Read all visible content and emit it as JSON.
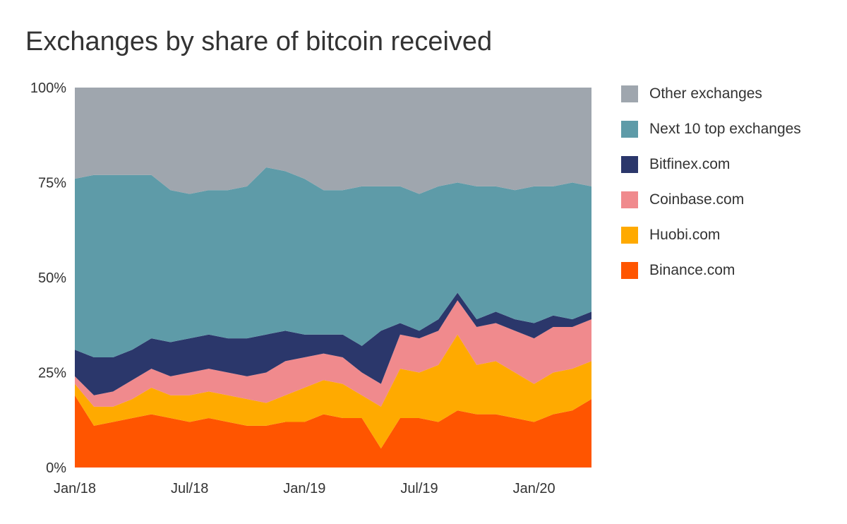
{
  "title": "Exchanges by share of bitcoin received",
  "chart_data": {
    "type": "area",
    "stacked": true,
    "title": "Exchanges by share of bitcoin received",
    "xlabel": "",
    "ylabel": "",
    "x_tick_labels": [
      "Jan/18",
      "Jul/18",
      "Jan/19",
      "Jul/19",
      "Jan/20"
    ],
    "y_tick_labels": [
      "0%",
      "25%",
      "50%",
      "75%",
      "100%"
    ],
    "ylim": [
      0,
      100
    ],
    "x_start": "2018-01",
    "x_end": "2020-04",
    "legend_position": "right",
    "x": [
      "2018-01",
      "2018-02",
      "2018-03",
      "2018-04",
      "2018-05",
      "2018-06",
      "2018-07",
      "2018-08",
      "2018-09",
      "2018-10",
      "2018-11",
      "2018-12",
      "2019-01",
      "2019-02",
      "2019-03",
      "2019-04",
      "2019-05",
      "2019-06",
      "2019-07",
      "2019-08",
      "2019-09",
      "2019-10",
      "2019-11",
      "2019-12",
      "2020-01",
      "2020-02",
      "2020-03",
      "2020-04"
    ],
    "series": [
      {
        "name": "Binance.com",
        "color": "#ff5500",
        "values": [
          19,
          11,
          12,
          13,
          14,
          13,
          12,
          13,
          12,
          11,
          11,
          12,
          12,
          14,
          13,
          13,
          5,
          13,
          13,
          12,
          15,
          14,
          14,
          13,
          12,
          14,
          15,
          18
        ]
      },
      {
        "name": "Huobi.com",
        "color": "#ffaa00",
        "values": [
          3,
          5,
          4,
          5,
          7,
          6,
          7,
          7,
          7,
          7,
          6,
          7,
          9,
          9,
          9,
          6,
          11,
          13,
          12,
          15,
          20,
          13,
          14,
          12,
          10,
          11,
          11,
          10
        ]
      },
      {
        "name": "Coinbase.com",
        "color": "#f08a8d",
        "values": [
          2,
          3,
          4,
          5,
          5,
          5,
          6,
          6,
          6,
          6,
          8,
          9,
          8,
          7,
          7,
          6,
          6,
          9,
          9,
          9,
          9,
          10,
          10,
          11,
          12,
          12,
          11,
          11
        ]
      },
      {
        "name": "Bitfinex.com",
        "color": "#2b376b",
        "values": [
          7,
          10,
          9,
          8,
          8,
          9,
          9,
          9,
          9,
          10,
          10,
          8,
          6,
          5,
          6,
          7,
          14,
          3,
          2,
          3,
          2,
          2,
          3,
          3,
          4,
          3,
          2,
          2
        ]
      },
      {
        "name": "Next 10 top exchanges",
        "color": "#5e9ba8",
        "values": [
          45,
          48,
          48,
          46,
          43,
          40,
          38,
          38,
          39,
          40,
          44,
          42,
          41,
          38,
          38,
          42,
          38,
          36,
          36,
          35,
          29,
          35,
          33,
          34,
          36,
          34,
          36,
          33
        ]
      },
      {
        "name": "Other exchanges",
        "color": "#9fa6ae",
        "values": [
          24,
          23,
          23,
          23,
          23,
          27,
          28,
          27,
          27,
          26,
          21,
          22,
          24,
          27,
          27,
          26,
          26,
          26,
          28,
          26,
          25,
          26,
          26,
          27,
          26,
          26,
          25,
          26
        ]
      }
    ]
  }
}
